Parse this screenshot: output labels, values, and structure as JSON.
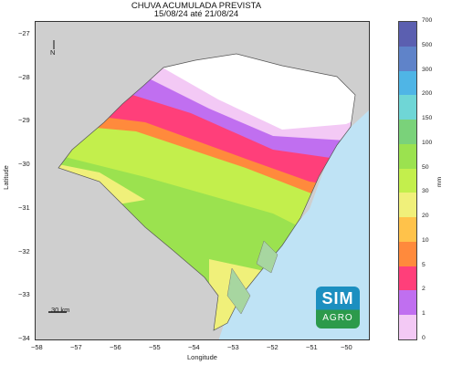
{
  "title": {
    "line1": "CHUVA ACUMULADA PREVISTA",
    "line2": "15/08/24 até 21/08/24"
  },
  "map": {
    "north_label": "N",
    "scale_label": "30 km",
    "xlabel": "Longitude",
    "ylabel": "Latitude",
    "x_ticks": [
      "−58",
      "−57",
      "−56",
      "−55",
      "−54",
      "−53",
      "−52",
      "−51",
      "−50"
    ],
    "y_ticks": [
      "−27",
      "−28",
      "−29",
      "−30",
      "−31",
      "−32",
      "−33",
      "−34"
    ],
    "colors": {
      "land_outside": "#cfcfcf",
      "ocean": "#bfe3f5",
      "no_rain": "#ffffff"
    }
  },
  "colorbar": {
    "unit": "mm",
    "ticks": [
      "700",
      "500",
      "300",
      "200",
      "150",
      "100",
      "50",
      "30",
      "20",
      "10",
      "5",
      "2",
      "1",
      "0"
    ],
    "colors": [
      "#5b5fb0",
      "#5f83c9",
      "#4fb5e6",
      "#6fd6d6",
      "#7ad27a",
      "#9be24f",
      "#c3ef4c",
      "#f0f07a",
      "#ffc24a",
      "#ff8a3c",
      "#ff3f7a",
      "#c06ff0",
      "#f3c9f5",
      "#ffffff"
    ]
  },
  "logo": {
    "top": "SIM",
    "bottom": "AGRO"
  }
}
